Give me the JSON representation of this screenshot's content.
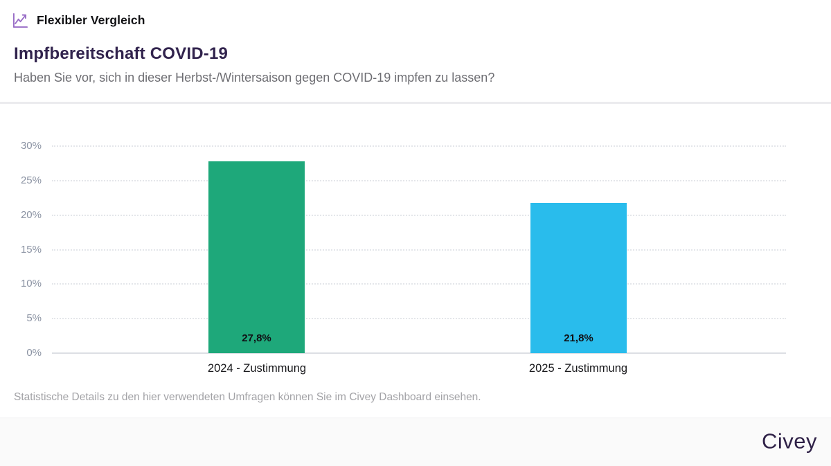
{
  "header": {
    "app_label": "Flexibler Vergleich",
    "icon": "trend-line-chart-icon",
    "icon_color": "#9a6fc7"
  },
  "title": "Impfbereitschaft COVID-19",
  "subtitle": "Haben Sie vor, sich in dieser Herbst-/Wintersaison gegen COVID-19 impfen zu lassen?",
  "footer_note": "Statistische Details zu den hier verwendeten Umfragen können Sie im Civey Dashboard einsehen.",
  "brand": {
    "logo_text": "Civey",
    "title_color": "#31234d",
    "accent_purple": "#9a6fc7"
  },
  "chart_data": {
    "type": "bar",
    "title": "Impfbereitschaft COVID-19",
    "categories": [
      "2024 - Zustimmung",
      "2025 - Zustimmung"
    ],
    "values": [
      27.8,
      21.8
    ],
    "value_labels": [
      "27,8%",
      "21,8%"
    ],
    "bar_colors": [
      "#1ea87a",
      "#29bcec"
    ],
    "ylim": [
      0,
      30
    ],
    "yticks": [
      30,
      25,
      20,
      15,
      10,
      5,
      0
    ],
    "ytick_labels": [
      "30%",
      "25%",
      "20%",
      "15%",
      "10%",
      "5%",
      "0%"
    ],
    "grid": "dotted-horizontal",
    "zero_line": "solid",
    "legend": "none",
    "xlabel": "",
    "ylabel": ""
  }
}
